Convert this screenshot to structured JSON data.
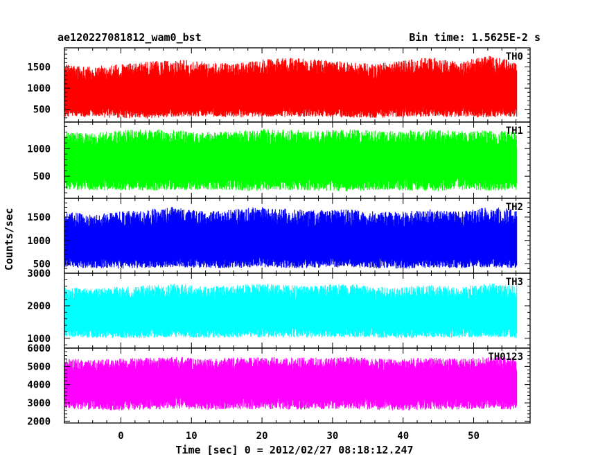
{
  "chart_data": {
    "type": "line",
    "title_left": "ae120227081812_wam0_bst",
    "title_right": "Bin time: 1.5625E-2 s",
    "xlabel": "Time [sec] 0 = 2012/02/27 08:18:12.247",
    "ylabel": "Counts/sec",
    "xlim": [
      -8,
      58
    ],
    "data_x_range": [
      -8,
      56
    ],
    "x_ticks": [
      0,
      10,
      20,
      30,
      40,
      50
    ],
    "grid": false,
    "panels": [
      {
        "name": "TH0",
        "color": "#ff0000",
        "ylim": [
          200,
          1950
        ],
        "y_ticks": [
          500,
          1000,
          1500
        ],
        "x": [
          -8,
          -4,
          0,
          4,
          8,
          12,
          16,
          20,
          24,
          28,
          32,
          36,
          40,
          44,
          48,
          52,
          56
        ],
        "mean": [
          820,
          800,
          780,
          790,
          800,
          820,
          810,
          800,
          830,
          840,
          820,
          800,
          810,
          830,
          820,
          830,
          800
        ],
        "upper": [
          1500,
          1450,
          1500,
          1550,
          1600,
          1550,
          1500,
          1600,
          1650,
          1600,
          1550,
          1500,
          1600,
          1650,
          1550,
          1700,
          1550
        ],
        "lower": [
          300,
          280,
          270,
          260,
          300,
          300,
          280,
          300,
          290,
          300,
          280,
          270,
          290,
          300,
          290,
          280,
          300
        ]
      },
      {
        "name": "TH1",
        "color": "#00ff00",
        "ylim": [
          100,
          1480
        ],
        "y_ticks": [
          500,
          1000
        ],
        "x": [
          -8,
          -4,
          0,
          4,
          8,
          12,
          16,
          20,
          24,
          28,
          32,
          36,
          40,
          44,
          48,
          52,
          56
        ],
        "mean": [
          750,
          740,
          730,
          750,
          760,
          740,
          750,
          760,
          750,
          740,
          760,
          750,
          740,
          760,
          750,
          740,
          740
        ],
        "upper": [
          1250,
          1230,
          1280,
          1300,
          1280,
          1250,
          1270,
          1300,
          1290,
          1270,
          1300,
          1280,
          1270,
          1300,
          1260,
          1280,
          1250
        ],
        "lower": [
          230,
          220,
          210,
          200,
          220,
          230,
          210,
          200,
          220,
          210,
          200,
          220,
          210,
          200,
          230,
          210,
          220
        ]
      },
      {
        "name": "TH2",
        "color": "#0000ff",
        "ylim": [
          300,
          1900
        ],
        "y_ticks": [
          500,
          1000,
          1500
        ],
        "x": [
          -8,
          -4,
          0,
          4,
          8,
          12,
          16,
          20,
          24,
          28,
          32,
          36,
          40,
          44,
          48,
          52,
          56
        ],
        "mean": [
          900,
          880,
          870,
          890,
          900,
          880,
          890,
          900,
          880,
          890,
          900,
          880,
          870,
          890,
          880,
          900,
          880
        ],
        "upper": [
          1550,
          1500,
          1550,
          1600,
          1650,
          1550,
          1600,
          1650,
          1600,
          1580,
          1600,
          1550,
          1550,
          1600,
          1550,
          1650,
          1600
        ],
        "lower": [
          400,
          380,
          370,
          390,
          400,
          380,
          390,
          400,
          380,
          390,
          400,
          380,
          370,
          390,
          380,
          400,
          380
        ]
      },
      {
        "name": "TH3",
        "color": "#00ffff",
        "ylim": [
          700,
          3000
        ],
        "y_ticks": [
          1000,
          2000,
          3000
        ],
        "x": [
          -8,
          -4,
          0,
          4,
          8,
          12,
          16,
          20,
          24,
          28,
          32,
          36,
          40,
          44,
          48,
          52,
          56
        ],
        "mean": [
          1700,
          1680,
          1650,
          1680,
          1700,
          1680,
          1690,
          1700,
          1680,
          1690,
          1700,
          1680,
          1670,
          1690,
          1680,
          1700,
          1680
        ],
        "upper": [
          2500,
          2450,
          2500,
          2550,
          2600,
          2500,
          2550,
          2600,
          2550,
          2550,
          2600,
          2500,
          2500,
          2550,
          2500,
          2600,
          2550
        ],
        "lower": [
          1000,
          980,
          960,
          980,
          1000,
          980,
          990,
          1000,
          980,
          990,
          1000,
          980,
          970,
          990,
          980,
          1000,
          980
        ]
      },
      {
        "name": "TH0123",
        "color": "#ff00ff",
        "ylim": [
          1900,
          6000
        ],
        "y_ticks": [
          2000,
          3000,
          4000,
          5000,
          6000
        ],
        "x": [
          -8,
          -4,
          0,
          4,
          8,
          12,
          16,
          20,
          24,
          28,
          32,
          36,
          40,
          44,
          48,
          52,
          56
        ],
        "mean": [
          4050,
          4000,
          3980,
          4000,
          4050,
          4000,
          4020,
          4050,
          4000,
          4020,
          4050,
          4000,
          3980,
          4020,
          4000,
          4050,
          4000
        ],
        "upper": [
          5300,
          5250,
          5300,
          5350,
          5400,
          5300,
          5350,
          5400,
          5350,
          5350,
          5400,
          5300,
          5300,
          5350,
          5300,
          5400,
          5350
        ],
        "lower": [
          2600,
          2550,
          2500,
          2550,
          2600,
          2550,
          2570,
          2600,
          2550,
          2570,
          2600,
          2550,
          2500,
          2570,
          2550,
          2600,
          2550
        ]
      }
    ]
  }
}
